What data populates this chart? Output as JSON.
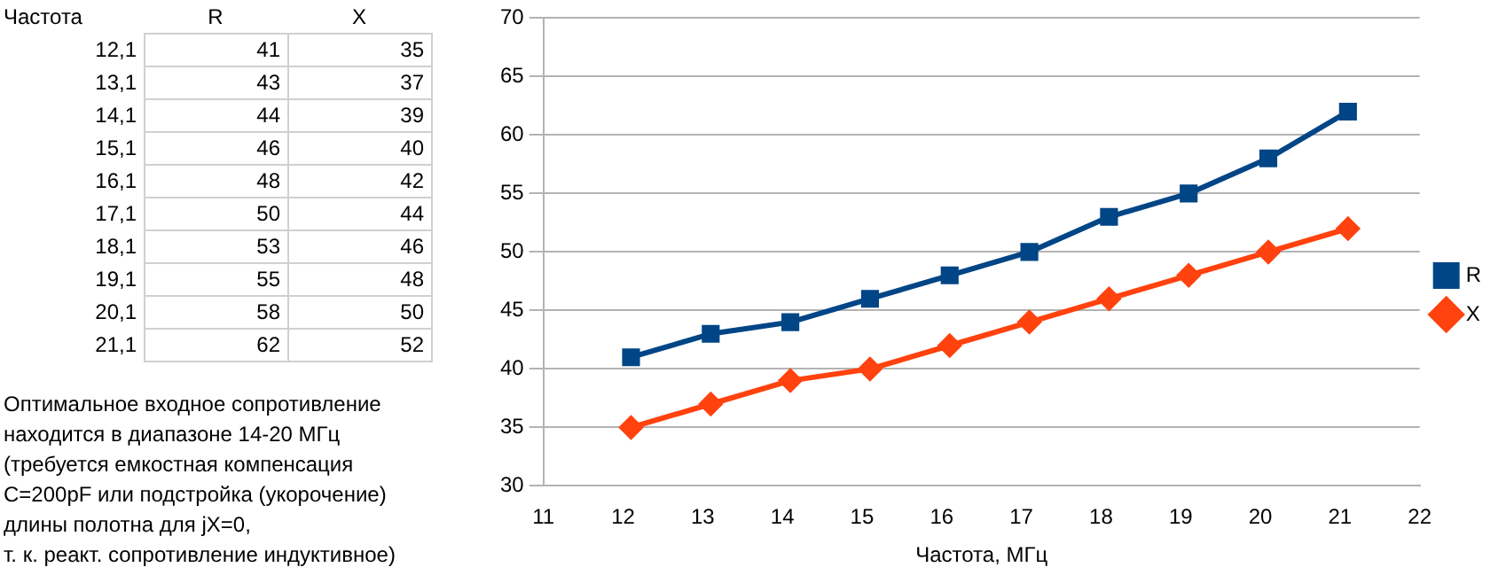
{
  "chart_data": [
    {
      "type": "heatmap",
      "ylabel": "Частота",
      "data_labels": true,
      "categories": [
        "R",
        "X"
      ],
      "y_categories": [
        "12,1",
        "13,1",
        "14,1",
        "15,1",
        "16,1",
        "17,1",
        "18,1",
        "19,1",
        "20,1",
        "21,1"
      ],
      "cells": [
        [
          41,
          35
        ],
        [
          43,
          37
        ],
        [
          44,
          39
        ],
        [
          46,
          40
        ],
        [
          48,
          42
        ],
        [
          50,
          44
        ],
        [
          53,
          46
        ],
        [
          55,
          48
        ],
        [
          58,
          50
        ],
        [
          62,
          52
        ]
      ],
      "annotations": [
        "Оптимальное входное сопротивление\nнаходится в диапазоне 14-20 МГц\n(требуется емкостная компенсация\nC=200pF или подстройка (укорочение)\nдлины полотна для jX=0,\nт. к. реакт. сопротивление индуктивное)"
      ]
    },
    {
      "type": "line",
      "x": [
        12.1,
        13.1,
        14.1,
        15.1,
        16.1,
        17.1,
        18.1,
        19.1,
        20.1,
        21.1
      ],
      "series": [
        {
          "name": "R",
          "color": "#004586",
          "marker": "square",
          "values": [
            41,
            43,
            44,
            46,
            48,
            50,
            53,
            55,
            58,
            62
          ]
        },
        {
          "name": "X",
          "color": "#ff420e",
          "marker": "diamond",
          "values": [
            35,
            37,
            39,
            40,
            42,
            44,
            46,
            48,
            50,
            52
          ]
        }
      ],
      "xlabel": "Частота, МГц",
      "xlim": [
        11,
        22
      ],
      "xticks": [
        11,
        12,
        13,
        14,
        15,
        16,
        17,
        18,
        19,
        20,
        21,
        22
      ],
      "ylim": [
        30,
        70
      ],
      "yticks": [
        30,
        35,
        40,
        45,
        50,
        55,
        60,
        65,
        70
      ],
      "grid": "y",
      "legend": "right",
      "line_style": "solid"
    }
  ]
}
